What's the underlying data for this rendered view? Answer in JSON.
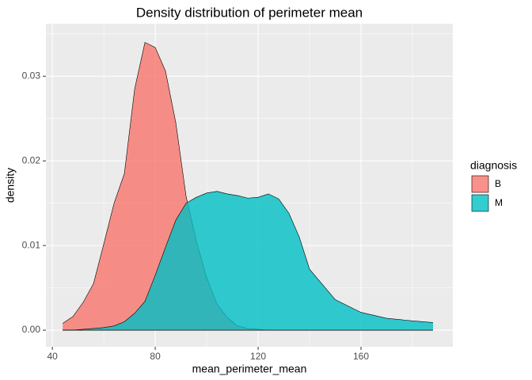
{
  "chart_data": {
    "type": "density",
    "title": "Density distribution of perimeter mean",
    "x_label": "mean_perimeter_mean",
    "y_label": "density",
    "legend_title": "diagnosis",
    "legend_position": "right",
    "x": [
      44,
      48,
      52,
      56,
      60,
      64,
      68,
      72,
      76,
      80,
      84,
      88,
      92,
      96,
      100,
      104,
      108,
      112,
      116,
      120,
      124,
      128,
      132,
      136,
      140,
      150,
      160,
      170,
      180,
      188
    ],
    "series": [
      {
        "name": "B",
        "color": "#F8766D",
        "values": [
          0.0008,
          0.0016,
          0.0033,
          0.0055,
          0.0102,
          0.015,
          0.0185,
          0.0285,
          0.034,
          0.0334,
          0.0306,
          0.0245,
          0.0158,
          0.0105,
          0.0062,
          0.0031,
          0.0015,
          0.0005,
          0.0002,
          0.0001,
          0,
          0,
          0,
          0,
          0,
          0,
          0,
          0,
          0,
          0
        ]
      },
      {
        "name": "M",
        "color": "#00BFC4",
        "values": [
          0,
          0,
          0.0001,
          0.0002,
          0.0003,
          0.0005,
          0.001,
          0.002,
          0.0034,
          0.0065,
          0.0098,
          0.013,
          0.015,
          0.0157,
          0.0162,
          0.0164,
          0.0161,
          0.0159,
          0.0156,
          0.0157,
          0.0161,
          0.0155,
          0.0138,
          0.011,
          0.0072,
          0.0036,
          0.0021,
          0.0014,
          0.0011,
          0.0009
        ]
      }
    ],
    "xlim": [
      37.5,
      195.7
    ],
    "ylim": [
      -0.00196,
      0.0362
    ],
    "xticks": [
      40,
      80,
      120,
      160
    ],
    "yticks": [
      {
        "value": 0,
        "label": "0.00"
      },
      {
        "value": 0.01,
        "label": "0.01"
      },
      {
        "value": 0.02,
        "label": "0.02"
      },
      {
        "value": 0.03,
        "label": "0.03"
      }
    ],
    "xminor": [
      60,
      100,
      140,
      180
    ],
    "yminor": [
      0.005,
      0.015,
      0.025,
      0.035
    ],
    "grid": true,
    "fill_opacity": 0.8
  }
}
